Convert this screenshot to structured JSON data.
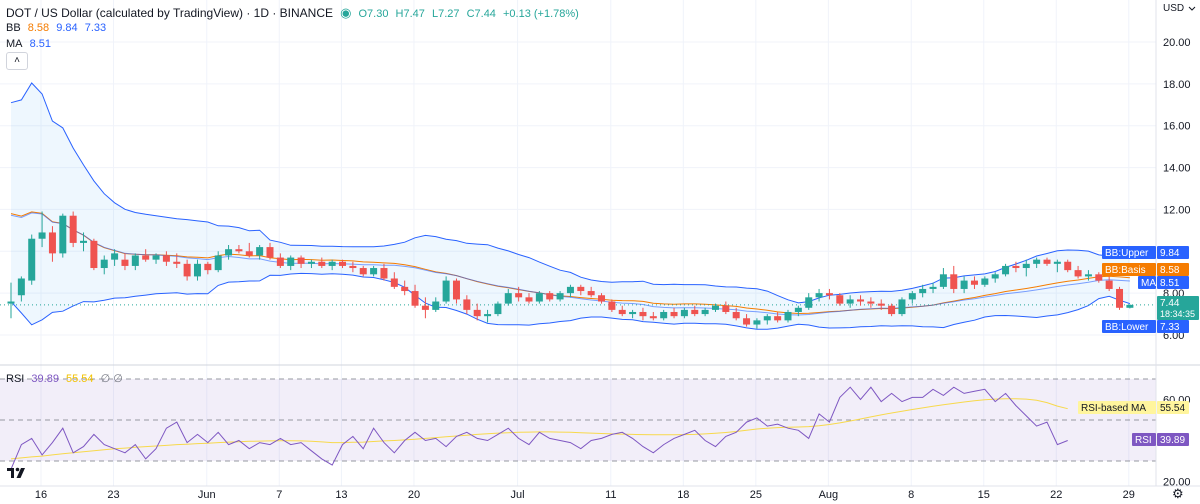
{
  "header": {
    "title": "DOT / US Dollar (calculated by TradingView) · 1D · BINANCE",
    "ohlc": [
      {
        "k": "O",
        "v": "7.30"
      },
      {
        "k": "H",
        "v": "7.47"
      },
      {
        "k": "L",
        "v": "7.27"
      },
      {
        "k": "C",
        "v": "7.44"
      }
    ],
    "change": "+0.13 (+1.78%)",
    "bb_label": "BB",
    "bb_values": [
      "8.58",
      "9.84",
      "7.33"
    ],
    "ma_label": "MA",
    "ma_value": "8.51",
    "collapse_glyph": "˄"
  },
  "price_axis": {
    "currency": "USD",
    "ticks": [
      "20.00",
      "18.00",
      "16.00",
      "14.00",
      "12.00",
      "8.00",
      "6.00"
    ]
  },
  "tags": [
    {
      "label": "BB:Upper",
      "value": "9.84",
      "color": "#2962ff",
      "price": 9.84
    },
    {
      "label": "BB:Basis",
      "value": "8.58",
      "color": "#f57c00",
      "price": 8.58
    },
    {
      "label": "MA",
      "value": "8.51",
      "color": "#2962ff",
      "price": 8.51
    },
    {
      "label": "BB:Lower",
      "value": "7.33",
      "color": "#2962ff",
      "price": 7.33
    }
  ],
  "last_price": {
    "value": "7.44",
    "countdown": "18:34:35",
    "color": "#26a69a"
  },
  "rsi": {
    "label": "RSI",
    "value": "39.89",
    "ma_value": "55.54",
    "ghost": "∅ ∅",
    "ticks": [
      "60.00",
      "20.00"
    ],
    "tag_ma_label": "RSI-based MA",
    "tag_rsi_label": "RSI",
    "upper": 70,
    "lower": 30,
    "mid": 50,
    "values": [
      26,
      38,
      41,
      33,
      39,
      46,
      34,
      37,
      43,
      38,
      36,
      34,
      38,
      31,
      36,
      46,
      49,
      39,
      43,
      39,
      44,
      38,
      40,
      36,
      39,
      38,
      41,
      38,
      39,
      35,
      31,
      28,
      38,
      42,
      36,
      46,
      39,
      34,
      40,
      44,
      40,
      41,
      37,
      42,
      44,
      41,
      40,
      43,
      46,
      41,
      38,
      44,
      41,
      40,
      39,
      36,
      40,
      41,
      43,
      44,
      41,
      37,
      34,
      38,
      41,
      43,
      45,
      40,
      37,
      42,
      44,
      49,
      51,
      47,
      48,
      46,
      45,
      41,
      53,
      49,
      61,
      66,
      60,
      66,
      59,
      63,
      59,
      61,
      61,
      65,
      62,
      66,
      63,
      64,
      65,
      59,
      63,
      57,
      52,
      47,
      49,
      38,
      40
    ],
    "ma_values": [
      31,
      31.5,
      32,
      32.4,
      33,
      33.5,
      34,
      34.5,
      35,
      35.5,
      36,
      36.3,
      36.7,
      37,
      37.3,
      37.6,
      38,
      38.2,
      38.5,
      38.7,
      39,
      39.2,
      39.4,
      39.6,
      39.7,
      39.8,
      39.9,
      39.9,
      39.8,
      39.6,
      39.3,
      39,
      39,
      39.1,
      39.2,
      39.5,
      39.8,
      40,
      40.3,
      40.6,
      41,
      41.4,
      41.8,
      42.2,
      42.6,
      43,
      43.3,
      43.6,
      43.8,
      44,
      44.1,
      44.2,
      44.2,
      44.1,
      44,
      43.8,
      43.6,
      43.4,
      43.2,
      43.1,
      43,
      42.9,
      42.8,
      42.8,
      42.8,
      42.9,
      43,
      43.2,
      43.5,
      43.9,
      44.4,
      45,
      45.6,
      46,
      46.3,
      46.5,
      46.6,
      46.8,
      47.2,
      47.8,
      48.6,
      49.5,
      50.5,
      51.5,
      52.5,
      53.4,
      54.3,
      55.1,
      55.9,
      56.7,
      57.4,
      58.1,
      58.8,
      59.4,
      59.9,
      60.2,
      60.4,
      60.4,
      60.2,
      59.6,
      58.5,
      56.8,
      55.5
    ]
  },
  "time_axis": [
    "16",
    "23",
    "Jun",
    "7",
    "13",
    "20",
    "Jul",
    "11",
    "18",
    "25",
    "Aug",
    "8",
    "15",
    "22",
    "29"
  ],
  "chart_data": {
    "type": "candlestick",
    "title": "DOT / US Dollar (calculated by TradingView) · 1D · BINANCE",
    "ylabel": "USD",
    "ylim": [
      5.6,
      21.5
    ],
    "indicators": [
      "BB 8.58 9.84 7.33",
      "MA 8.51",
      "RSI 39.89 55.54"
    ],
    "candles": [
      [
        7.5,
        8.5,
        6.8,
        7.6
      ],
      [
        7.9,
        8.8,
        7.6,
        8.7
      ],
      [
        8.6,
        10.8,
        8.4,
        10.6
      ],
      [
        10.6,
        11.9,
        10.2,
        10.9
      ],
      [
        10.9,
        11.2,
        9.5,
        9.9
      ],
      [
        9.9,
        11.8,
        9.7,
        11.7
      ],
      [
        11.7,
        11.9,
        10.2,
        10.4
      ],
      [
        10.4,
        10.9,
        10.0,
        10.5
      ],
      [
        10.5,
        10.6,
        9.1,
        9.2
      ],
      [
        9.2,
        9.8,
        8.9,
        9.6
      ],
      [
        9.6,
        10.1,
        9.3,
        9.9
      ],
      [
        9.6,
        9.9,
        9.1,
        9.3
      ],
      [
        9.3,
        9.9,
        9.1,
        9.8
      ],
      [
        9.8,
        10.1,
        9.5,
        9.6
      ],
      [
        9.6,
        9.9,
        9.4,
        9.8
      ],
      [
        9.8,
        10.0,
        9.3,
        9.5
      ],
      [
        9.5,
        9.9,
        9.2,
        9.4
      ],
      [
        9.4,
        9.6,
        8.6,
        8.8
      ],
      [
        8.8,
        9.6,
        8.6,
        9.4
      ],
      [
        9.4,
        9.5,
        8.9,
        9.1
      ],
      [
        9.1,
        10.0,
        9.0,
        9.8
      ],
      [
        9.8,
        10.3,
        9.6,
        10.1
      ],
      [
        10.1,
        10.3,
        9.9,
        10.0
      ],
      [
        10.0,
        10.4,
        9.7,
        9.8
      ],
      [
        9.8,
        10.3,
        9.6,
        10.2
      ],
      [
        10.2,
        10.4,
        9.6,
        9.7
      ],
      [
        9.7,
        9.9,
        9.2,
        9.3
      ],
      [
        9.3,
        9.8,
        9.1,
        9.7
      ],
      [
        9.7,
        9.8,
        9.2,
        9.4
      ],
      [
        9.4,
        9.6,
        9.2,
        9.5
      ],
      [
        9.5,
        9.7,
        9.2,
        9.3
      ],
      [
        9.3,
        9.6,
        9.1,
        9.5
      ],
      [
        9.5,
        9.6,
        9.2,
        9.3
      ],
      [
        9.3,
        9.5,
        9.0,
        9.2
      ],
      [
        9.2,
        9.3,
        8.8,
        8.9
      ],
      [
        8.9,
        9.3,
        8.8,
        9.2
      ],
      [
        9.2,
        9.4,
        8.6,
        8.7
      ],
      [
        8.7,
        9.0,
        8.2,
        8.3
      ],
      [
        8.3,
        8.6,
        7.9,
        8.1
      ],
      [
        8.1,
        8.4,
        7.3,
        7.4
      ],
      [
        7.4,
        7.8,
        6.8,
        7.2
      ],
      [
        7.2,
        7.8,
        7.1,
        7.6
      ],
      [
        7.6,
        8.8,
        7.5,
        8.6
      ],
      [
        8.6,
        8.7,
        7.5,
        7.7
      ],
      [
        7.7,
        7.9,
        7.0,
        7.2
      ],
      [
        7.2,
        7.5,
        6.7,
        6.9
      ],
      [
        6.9,
        7.2,
        6.6,
        7.0
      ],
      [
        7.0,
        7.6,
        6.9,
        7.5
      ],
      [
        7.5,
        8.2,
        7.4,
        8.0
      ],
      [
        8.0,
        8.3,
        7.6,
        7.8
      ],
      [
        7.8,
        8.0,
        7.5,
        7.6
      ],
      [
        7.6,
        8.1,
        7.5,
        8.0
      ],
      [
        8.0,
        8.1,
        7.6,
        7.7
      ],
      [
        7.7,
        8.1,
        7.6,
        8.0
      ],
      [
        8.0,
        8.4,
        7.8,
        8.3
      ],
      [
        8.3,
        8.4,
        7.9,
        8.1
      ],
      [
        8.1,
        8.3,
        7.8,
        7.9
      ],
      [
        7.9,
        8.0,
        7.5,
        7.6
      ],
      [
        7.6,
        7.7,
        7.1,
        7.2
      ],
      [
        7.2,
        7.4,
        6.9,
        7.0
      ],
      [
        7.0,
        7.2,
        6.8,
        7.1
      ],
      [
        7.1,
        7.3,
        6.7,
        6.9
      ],
      [
        6.9,
        7.1,
        6.7,
        6.8
      ],
      [
        6.8,
        7.2,
        6.7,
        7.1
      ],
      [
        7.1,
        7.3,
        6.8,
        6.9
      ],
      [
        6.9,
        7.3,
        6.8,
        7.2
      ],
      [
        7.2,
        7.4,
        6.9,
        7.0
      ],
      [
        7.0,
        7.3,
        6.9,
        7.2
      ],
      [
        7.2,
        7.5,
        7.1,
        7.4
      ],
      [
        7.4,
        7.6,
        7.0,
        7.1
      ],
      [
        7.1,
        7.3,
        6.7,
        6.8
      ],
      [
        6.8,
        7.0,
        6.4,
        6.5
      ],
      [
        6.5,
        6.8,
        6.3,
        6.7
      ],
      [
        6.7,
        7.0,
        6.5,
        6.9
      ],
      [
        6.9,
        7.1,
        6.6,
        6.7
      ],
      [
        6.7,
        7.2,
        6.6,
        7.1
      ],
      [
        7.1,
        7.4,
        6.9,
        7.3
      ],
      [
        7.3,
        8.0,
        7.2,
        7.8
      ],
      [
        7.8,
        8.2,
        7.6,
        8.0
      ],
      [
        8.0,
        8.2,
        7.7,
        7.9
      ],
      [
        7.9,
        8.0,
        7.4,
        7.5
      ],
      [
        7.5,
        7.9,
        7.3,
        7.7
      ],
      [
        7.7,
        7.9,
        7.4,
        7.6
      ],
      [
        7.6,
        7.8,
        7.3,
        7.5
      ],
      [
        7.5,
        7.7,
        7.2,
        7.4
      ],
      [
        7.4,
        7.5,
        6.9,
        7.0
      ],
      [
        7.0,
        7.8,
        6.9,
        7.7
      ],
      [
        7.7,
        8.1,
        7.5,
        8.0
      ],
      [
        8.0,
        8.4,
        7.8,
        8.2
      ],
      [
        8.2,
        8.5,
        8.0,
        8.3
      ],
      [
        8.3,
        9.2,
        8.2,
        8.9
      ],
      [
        8.9,
        9.3,
        8.0,
        8.2
      ],
      [
        8.2,
        8.8,
        8.0,
        8.6
      ],
      [
        8.6,
        8.8,
        8.2,
        8.4
      ],
      [
        8.4,
        8.8,
        8.3,
        8.7
      ],
      [
        8.7,
        9.0,
        8.5,
        8.9
      ],
      [
        8.9,
        9.4,
        8.8,
        9.3
      ],
      [
        9.3,
        9.5,
        9.0,
        9.2
      ],
      [
        9.2,
        9.6,
        8.8,
        9.4
      ],
      [
        9.4,
        9.7,
        9.2,
        9.6
      ],
      [
        9.6,
        9.7,
        9.3,
        9.4
      ],
      [
        9.4,
        9.6,
        9.0,
        9.5
      ],
      [
        9.5,
        9.6,
        9.0,
        9.1
      ],
      [
        9.1,
        9.3,
        8.7,
        8.8
      ],
      [
        8.8,
        9.1,
        8.6,
        8.9
      ],
      [
        8.9,
        9.0,
        8.5,
        8.6
      ],
      [
        8.6,
        8.8,
        8.1,
        8.2
      ],
      [
        8.2,
        8.3,
        7.2,
        7.3
      ],
      [
        7.3,
        7.47,
        7.27,
        7.44
      ]
    ]
  }
}
